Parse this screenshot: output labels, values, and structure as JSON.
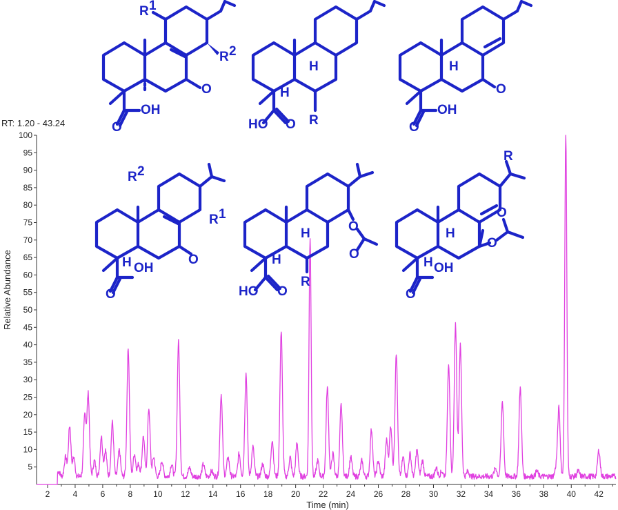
{
  "chart_data": {
    "type": "line",
    "range_label": "RT: 1.20 - 43.24",
    "xlabel": "Time (min)",
    "ylabel": "Relative Abundance",
    "xlim": [
      1.2,
      43.24
    ],
    "ylim": [
      0,
      100
    ],
    "x_ticks": [
      2,
      4,
      6,
      8,
      10,
      12,
      14,
      16,
      18,
      20,
      22,
      24,
      26,
      28,
      30,
      32,
      34,
      36,
      38,
      40,
      42
    ],
    "y_ticks": [
      5,
      10,
      15,
      20,
      25,
      30,
      35,
      40,
      45,
      50,
      55,
      60,
      65,
      70,
      75,
      80,
      85,
      90,
      95,
      100
    ],
    "series_color": "#e040e0",
    "baseline": 1.5,
    "peaks": [
      {
        "x": 2.8,
        "y": 3
      },
      {
        "x": 3.3,
        "y": 7
      },
      {
        "x": 3.6,
        "y": 16
      },
      {
        "x": 3.9,
        "y": 7
      },
      {
        "x": 4.7,
        "y": 19
      },
      {
        "x": 4.95,
        "y": 25
      },
      {
        "x": 5.4,
        "y": 6
      },
      {
        "x": 5.9,
        "y": 13
      },
      {
        "x": 6.2,
        "y": 9
      },
      {
        "x": 6.7,
        "y": 17
      },
      {
        "x": 7.2,
        "y": 9
      },
      {
        "x": 7.85,
        "y": 38
      },
      {
        "x": 8.3,
        "y": 8
      },
      {
        "x": 8.6,
        "y": 5
      },
      {
        "x": 8.95,
        "y": 13
      },
      {
        "x": 9.35,
        "y": 21
      },
      {
        "x": 9.7,
        "y": 7
      },
      {
        "x": 10.3,
        "y": 6
      },
      {
        "x": 11.0,
        "y": 5
      },
      {
        "x": 11.5,
        "y": 40
      },
      {
        "x": 12.3,
        "y": 4
      },
      {
        "x": 13.3,
        "y": 5
      },
      {
        "x": 13.9,
        "y": 3
      },
      {
        "x": 14.6,
        "y": 25
      },
      {
        "x": 15.1,
        "y": 7
      },
      {
        "x": 15.9,
        "y": 8
      },
      {
        "x": 16.4,
        "y": 31
      },
      {
        "x": 16.9,
        "y": 10
      },
      {
        "x": 17.6,
        "y": 5
      },
      {
        "x": 18.3,
        "y": 12
      },
      {
        "x": 18.95,
        "y": 43
      },
      {
        "x": 19.6,
        "y": 7
      },
      {
        "x": 20.1,
        "y": 11
      },
      {
        "x": 21.05,
        "y": 70
      },
      {
        "x": 21.6,
        "y": 6
      },
      {
        "x": 22.3,
        "y": 27
      },
      {
        "x": 22.7,
        "y": 8
      },
      {
        "x": 23.3,
        "y": 22
      },
      {
        "x": 24.0,
        "y": 7
      },
      {
        "x": 24.8,
        "y": 6
      },
      {
        "x": 25.5,
        "y": 15
      },
      {
        "x": 26.0,
        "y": 6
      },
      {
        "x": 26.6,
        "y": 12
      },
      {
        "x": 26.9,
        "y": 16
      },
      {
        "x": 27.3,
        "y": 37
      },
      {
        "x": 27.8,
        "y": 7
      },
      {
        "x": 28.3,
        "y": 8
      },
      {
        "x": 28.8,
        "y": 9
      },
      {
        "x": 29.2,
        "y": 6
      },
      {
        "x": 30.2,
        "y": 4
      },
      {
        "x": 30.6,
        "y": 3
      },
      {
        "x": 31.1,
        "y": 34
      },
      {
        "x": 31.6,
        "y": 45
      },
      {
        "x": 31.95,
        "y": 39
      },
      {
        "x": 32.5,
        "y": 3
      },
      {
        "x": 34.5,
        "y": 4
      },
      {
        "x": 35.0,
        "y": 23
      },
      {
        "x": 36.3,
        "y": 27
      },
      {
        "x": 37.5,
        "y": 3
      },
      {
        "x": 38.9,
        "y": 4
      },
      {
        "x": 39.1,
        "y": 21
      },
      {
        "x": 39.6,
        "y": 100
      },
      {
        "x": 40.5,
        "y": 3
      },
      {
        "x": 42.0,
        "y": 9
      }
    ]
  },
  "structures": {
    "row1_a": {
      "r1": "R",
      "r1_sup": "1",
      "r2": "R",
      "r2_sup": "2",
      "o": "O",
      "acid": "OH",
      "acid_o": "O"
    },
    "row1_b": {
      "h": "H",
      "h2": "H",
      "r": "R",
      "acid_ho": "HO",
      "acid_o": "O"
    },
    "row1_c": {
      "h": "H",
      "o": "O",
      "acid": "OH",
      "acid_o": "O"
    },
    "row2_a": {
      "r1": "R",
      "r1_sup": "1",
      "r2": "R",
      "r2_sup": "2",
      "o": "O",
      "acid": "OH",
      "acid_o": "O",
      "h": "H"
    },
    "row2_b": {
      "h": "H",
      "h2": "H",
      "r": "R",
      "acid_ho": "HO",
      "acid_o": "O",
      "ester_o": "O",
      "carbonyl_o": "O"
    },
    "row2_c": {
      "r": "R",
      "h": "H",
      "h2": "H",
      "acid": "OH",
      "acid_o": "O",
      "ester_o": "O",
      "carbonyl_o": "O"
    }
  }
}
